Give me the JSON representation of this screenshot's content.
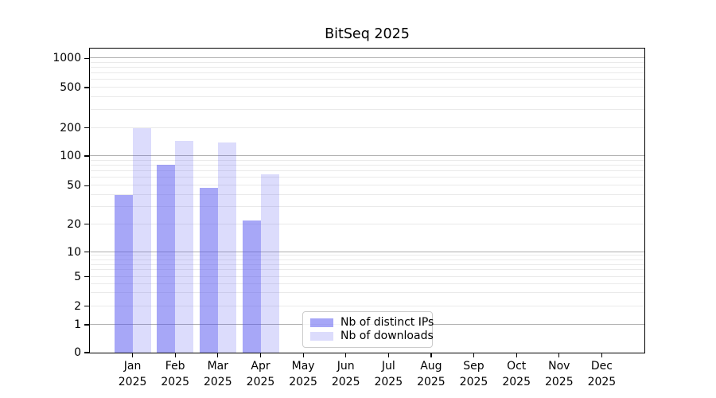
{
  "title": "BitSeq 2025",
  "colors": {
    "background": "#ffffff",
    "spine": "#000000",
    "grid_major": "#b0b0b0",
    "grid_minor": "#eaeaea",
    "legend_border": "#cccccc",
    "series_distinct_ips": "rgba(80,80,240,0.5)",
    "series_downloads": "rgba(80,80,240,0.2)"
  },
  "chart_data": {
    "type": "bar",
    "title": "BitSeq 2025",
    "categories": [
      "Jan 2025",
      "Feb 2025",
      "Mar 2025",
      "Apr 2025",
      "May 2025",
      "Jun 2025",
      "Jul 2025",
      "Aug 2025",
      "Sep 2025",
      "Oct 2025",
      "Nov 2025",
      "Dec 2025"
    ],
    "series": [
      {
        "name": "Nb of distinct IPs",
        "color": "rgba(80,80,240,0.5)",
        "values": [
          40,
          81,
          47,
          22,
          null,
          null,
          null,
          null,
          null,
          null,
          null,
          null
        ]
      },
      {
        "name": "Nb of downloads",
        "color": "rgba(80,80,240,0.2)",
        "values": [
          200,
          145,
          140,
          65,
          null,
          null,
          null,
          null,
          null,
          null,
          null,
          null
        ]
      }
    ],
    "xlabel": "",
    "ylabel": "",
    "y_axis": {
      "scale": "symlog",
      "range": [
        0,
        1260
      ],
      "tick_labels": [
        "1000",
        "500",
        "200",
        "100",
        "50",
        "20",
        "10",
        "5",
        "2",
        "1",
        "0"
      ],
      "tick_values": [
        1000,
        500,
        200,
        100,
        50,
        20,
        10,
        5,
        2,
        1,
        0
      ],
      "major_gridlines": [
        1,
        10,
        100,
        1000
      ],
      "minor_gridlines": [
        2,
        3,
        4,
        5,
        6,
        7,
        8,
        9,
        20,
        30,
        40,
        50,
        60,
        70,
        80,
        90,
        200,
        300,
        400,
        500,
        600,
        700,
        800,
        900
      ],
      "anchors": [
        [
          0,
          0
        ],
        [
          1,
          0.0915
        ],
        [
          2,
          0.1525
        ],
        [
          5,
          0.2501
        ],
        [
          10,
          0.3304
        ],
        [
          20,
          0.4227
        ],
        [
          50,
          0.5493
        ],
        [
          100,
          0.6469
        ],
        [
          200,
          0.7392
        ],
        [
          500,
          0.8719
        ],
        [
          1000,
          0.9678
        ]
      ]
    },
    "grid": true,
    "legend_position": "lower center (inside axes)"
  },
  "legend": {
    "entries": [
      "Nb of distinct IPs",
      "Nb of downloads"
    ]
  }
}
